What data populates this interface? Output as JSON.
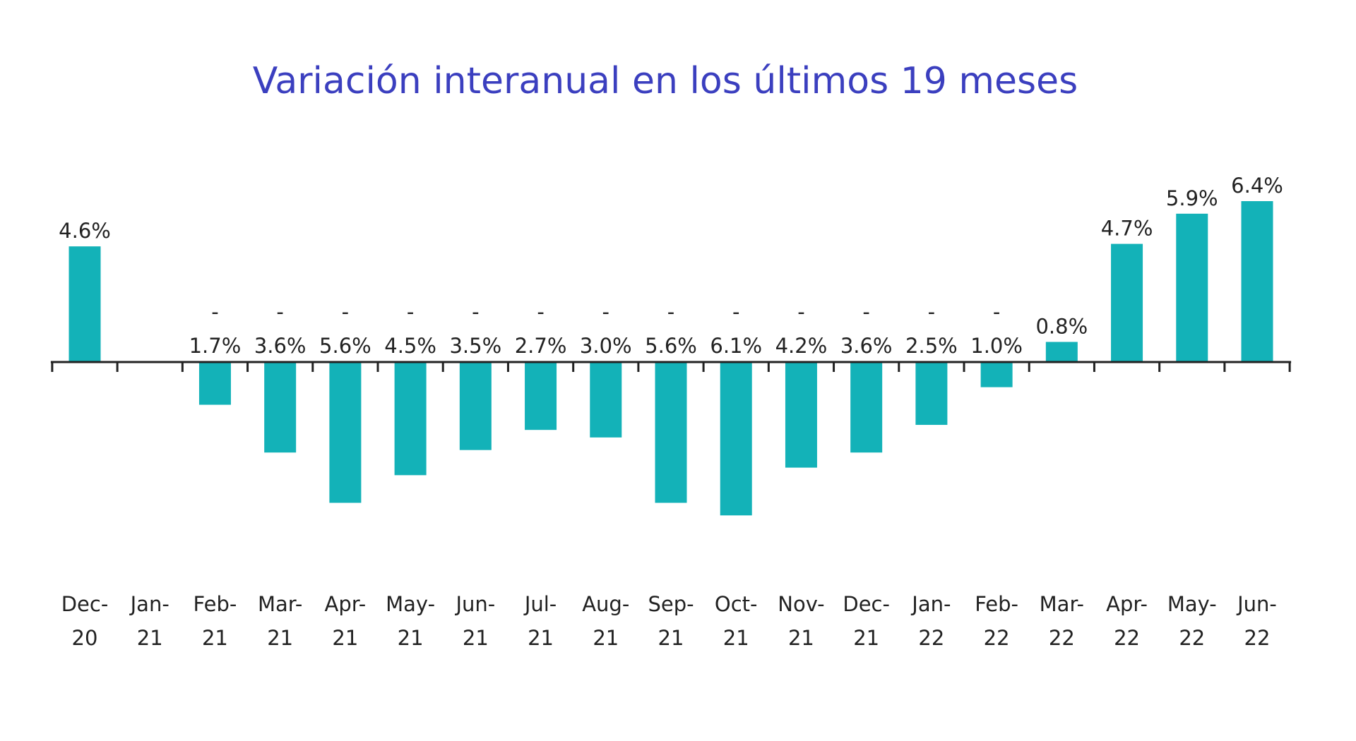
{
  "chart_data": {
    "type": "bar",
    "title": "Variación interanual en los últimos 19 meses",
    "categories": [
      "Dec-20",
      "Jan-21",
      "Feb-21",
      "Mar-21",
      "Apr-21",
      "May-21",
      "Jun-21",
      "Jul-21",
      "Aug-21",
      "Sep-21",
      "Oct-21",
      "Nov-21",
      "Dec-21",
      "Jan-22",
      "Feb-22",
      "Mar-22",
      "Apr-22",
      "May-22",
      "Jun-22"
    ],
    "values": [
      4.6,
      0,
      -1.7,
      -3.6,
      -5.6,
      -4.5,
      -3.5,
      -2.7,
      -3.0,
      -5.6,
      -6.1,
      -4.2,
      -3.6,
      -2.5,
      -1.0,
      0.8,
      4.7,
      5.9,
      6.4
    ],
    "value_labels": [
      "4.6%",
      null,
      "-1.7%",
      "-3.6%",
      "-5.6%",
      "-4.5%",
      "-3.5%",
      "-2.7%",
      "-3.0%",
      "-5.6%",
      "-6.1%",
      "-4.2%",
      "-3.6%",
      "-2.5%",
      "-1.0%",
      "0.8%",
      "4.7%",
      "5.9%",
      "6.4%"
    ],
    "color": "#13b2b8",
    "ylim": [
      -8,
      8
    ]
  }
}
